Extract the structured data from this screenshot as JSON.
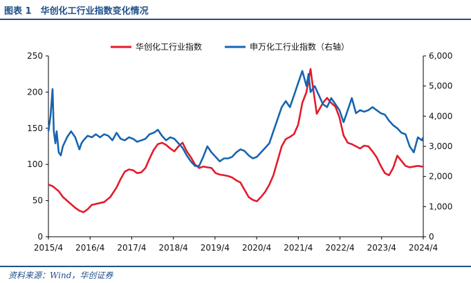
{
  "header": {
    "title": "图表 1　华创化工行业指数变化情况"
  },
  "footer": {
    "source": "资料来源：Wind，华创证券"
  },
  "chart_data": {
    "type": "line",
    "title": "",
    "xlabel": "",
    "ylabel": "",
    "ylim": [
      0,
      250
    ],
    "y2lim": [
      0,
      6000
    ],
    "yticks": [
      "0",
      "50",
      "100",
      "150",
      "200",
      "250"
    ],
    "y2ticks": [
      "0",
      "1,000",
      "2,000",
      "3,000",
      "4,000",
      "5,000",
      "6,000"
    ],
    "xticks": [
      "2015/4",
      "2016/4",
      "2017/4",
      "2018/4",
      "2019/4",
      "2020/4",
      "2021/4",
      "2022/4",
      "2023/4",
      "2024/4"
    ],
    "legend_position": "top-center",
    "colors": {
      "series1": "#e31a2a",
      "series2": "#1764b0",
      "title": "#1f4e89"
    },
    "series": [
      {
        "name": "华创化工行业指数",
        "axis": "left",
        "x": [
          2015.25,
          2015.35,
          2015.5,
          2015.6,
          2015.7,
          2015.8,
          2015.9,
          2016.0,
          2016.1,
          2016.2,
          2016.3,
          2016.45,
          2016.6,
          2016.75,
          2016.9,
          2017.0,
          2017.1,
          2017.2,
          2017.3,
          2017.4,
          2017.5,
          2017.6,
          2017.7,
          2017.8,
          2017.9,
          2018.0,
          2018.1,
          2018.2,
          2018.3,
          2018.4,
          2018.5,
          2018.6,
          2018.7,
          2018.8,
          2018.9,
          2019.0,
          2019.1,
          2019.2,
          2019.3,
          2019.4,
          2019.5,
          2019.6,
          2019.7,
          2019.8,
          2019.9,
          2020.0,
          2020.1,
          2020.2,
          2020.3,
          2020.4,
          2020.5,
          2020.6,
          2020.7,
          2020.8,
          2020.9,
          2021.0,
          2021.1,
          2021.2,
          2021.3,
          2021.4,
          2021.5,
          2021.6,
          2021.65,
          2021.7,
          2021.75,
          2021.8,
          2021.9,
          2022.0,
          2022.1,
          2022.2,
          2022.3,
          2022.4,
          2022.5,
          2022.6,
          2022.7,
          2022.8,
          2022.9,
          2023.0,
          2023.1,
          2023.2,
          2023.3,
          2023.4,
          2023.5,
          2023.6,
          2023.7,
          2023.8,
          2023.9,
          2024.0,
          2024.1,
          2024.2,
          2024.3,
          2024.33
        ],
        "values": [
          72,
          70,
          63,
          55,
          50,
          45,
          40,
          36,
          34,
          38,
          44,
          46,
          48,
          55,
          68,
          80,
          90,
          93,
          92,
          88,
          89,
          95,
          108,
          120,
          128,
          130,
          127,
          122,
          118,
          125,
          130,
          118,
          110,
          100,
          95,
          97,
          96,
          95,
          88,
          86,
          85,
          84,
          82,
          78,
          75,
          65,
          55,
          51,
          49,
          55,
          62,
          72,
          85,
          105,
          125,
          135,
          138,
          142,
          155,
          185,
          200,
          232,
          210,
          190,
          170,
          175,
          185,
          192,
          185,
          180,
          165,
          140,
          130,
          128,
          125,
          122,
          126,
          125,
          118,
          110,
          98,
          88,
          85,
          95,
          112,
          105,
          98,
          96,
          97,
          98,
          97,
          97
        ]
      },
      {
        "name": "申万化工行业指数（右轴）",
        "axis": "right",
        "x": [
          2015.25,
          2015.3,
          2015.35,
          2015.38,
          2015.42,
          2015.45,
          2015.5,
          2015.55,
          2015.6,
          2015.7,
          2015.8,
          2015.9,
          2016.0,
          2016.05,
          2016.1,
          2016.2,
          2016.3,
          2016.4,
          2016.5,
          2016.6,
          2016.7,
          2016.8,
          2016.9,
          2017.0,
          2017.1,
          2017.2,
          2017.3,
          2017.4,
          2017.5,
          2017.6,
          2017.7,
          2017.8,
          2017.9,
          2018.0,
          2018.1,
          2018.2,
          2018.3,
          2018.4,
          2018.5,
          2018.6,
          2018.7,
          2018.8,
          2018.9,
          2019.0,
          2019.1,
          2019.2,
          2019.3,
          2019.4,
          2019.5,
          2019.6,
          2019.7,
          2019.8,
          2019.9,
          2020.0,
          2020.1,
          2020.2,
          2020.3,
          2020.4,
          2020.5,
          2020.6,
          2020.7,
          2020.8,
          2020.9,
          2021.0,
          2021.1,
          2021.2,
          2021.3,
          2021.4,
          2021.5,
          2021.55,
          2021.6,
          2021.7,
          2021.8,
          2021.9,
          2022.0,
          2022.1,
          2022.2,
          2022.3,
          2022.4,
          2022.5,
          2022.6,
          2022.7,
          2022.8,
          2022.9,
          2023.0,
          2023.1,
          2023.2,
          2023.3,
          2023.4,
          2023.5,
          2023.6,
          2023.7,
          2023.8,
          2023.9,
          2024.0,
          2024.1,
          2024.2,
          2024.3,
          2024.33
        ],
        "values": [
          3500,
          4000,
          4900,
          3500,
          3100,
          3500,
          2800,
          2700,
          3000,
          3300,
          3500,
          3300,
          2900,
          3100,
          3200,
          3350,
          3300,
          3400,
          3300,
          3400,
          3350,
          3200,
          3450,
          3250,
          3200,
          3300,
          3250,
          3150,
          3200,
          3250,
          3400,
          3450,
          3550,
          3350,
          3200,
          3300,
          3250,
          3100,
          2950,
          2700,
          2500,
          2350,
          2350,
          2650,
          3000,
          2800,
          2650,
          2500,
          2600,
          2600,
          2650,
          2800,
          2900,
          2850,
          2700,
          2600,
          2650,
          2800,
          2950,
          3100,
          3500,
          3900,
          4300,
          4500,
          4300,
          4700,
          5100,
          5500,
          5000,
          5400,
          4800,
          5000,
          4700,
          4400,
          4300,
          4600,
          4400,
          4200,
          3800,
          4200,
          4600,
          4100,
          4200,
          4150,
          4200,
          4300,
          4200,
          4100,
          4050,
          3850,
          3700,
          3600,
          3450,
          3400,
          3000,
          2800,
          3300,
          3200,
          3300
        ]
      }
    ]
  }
}
